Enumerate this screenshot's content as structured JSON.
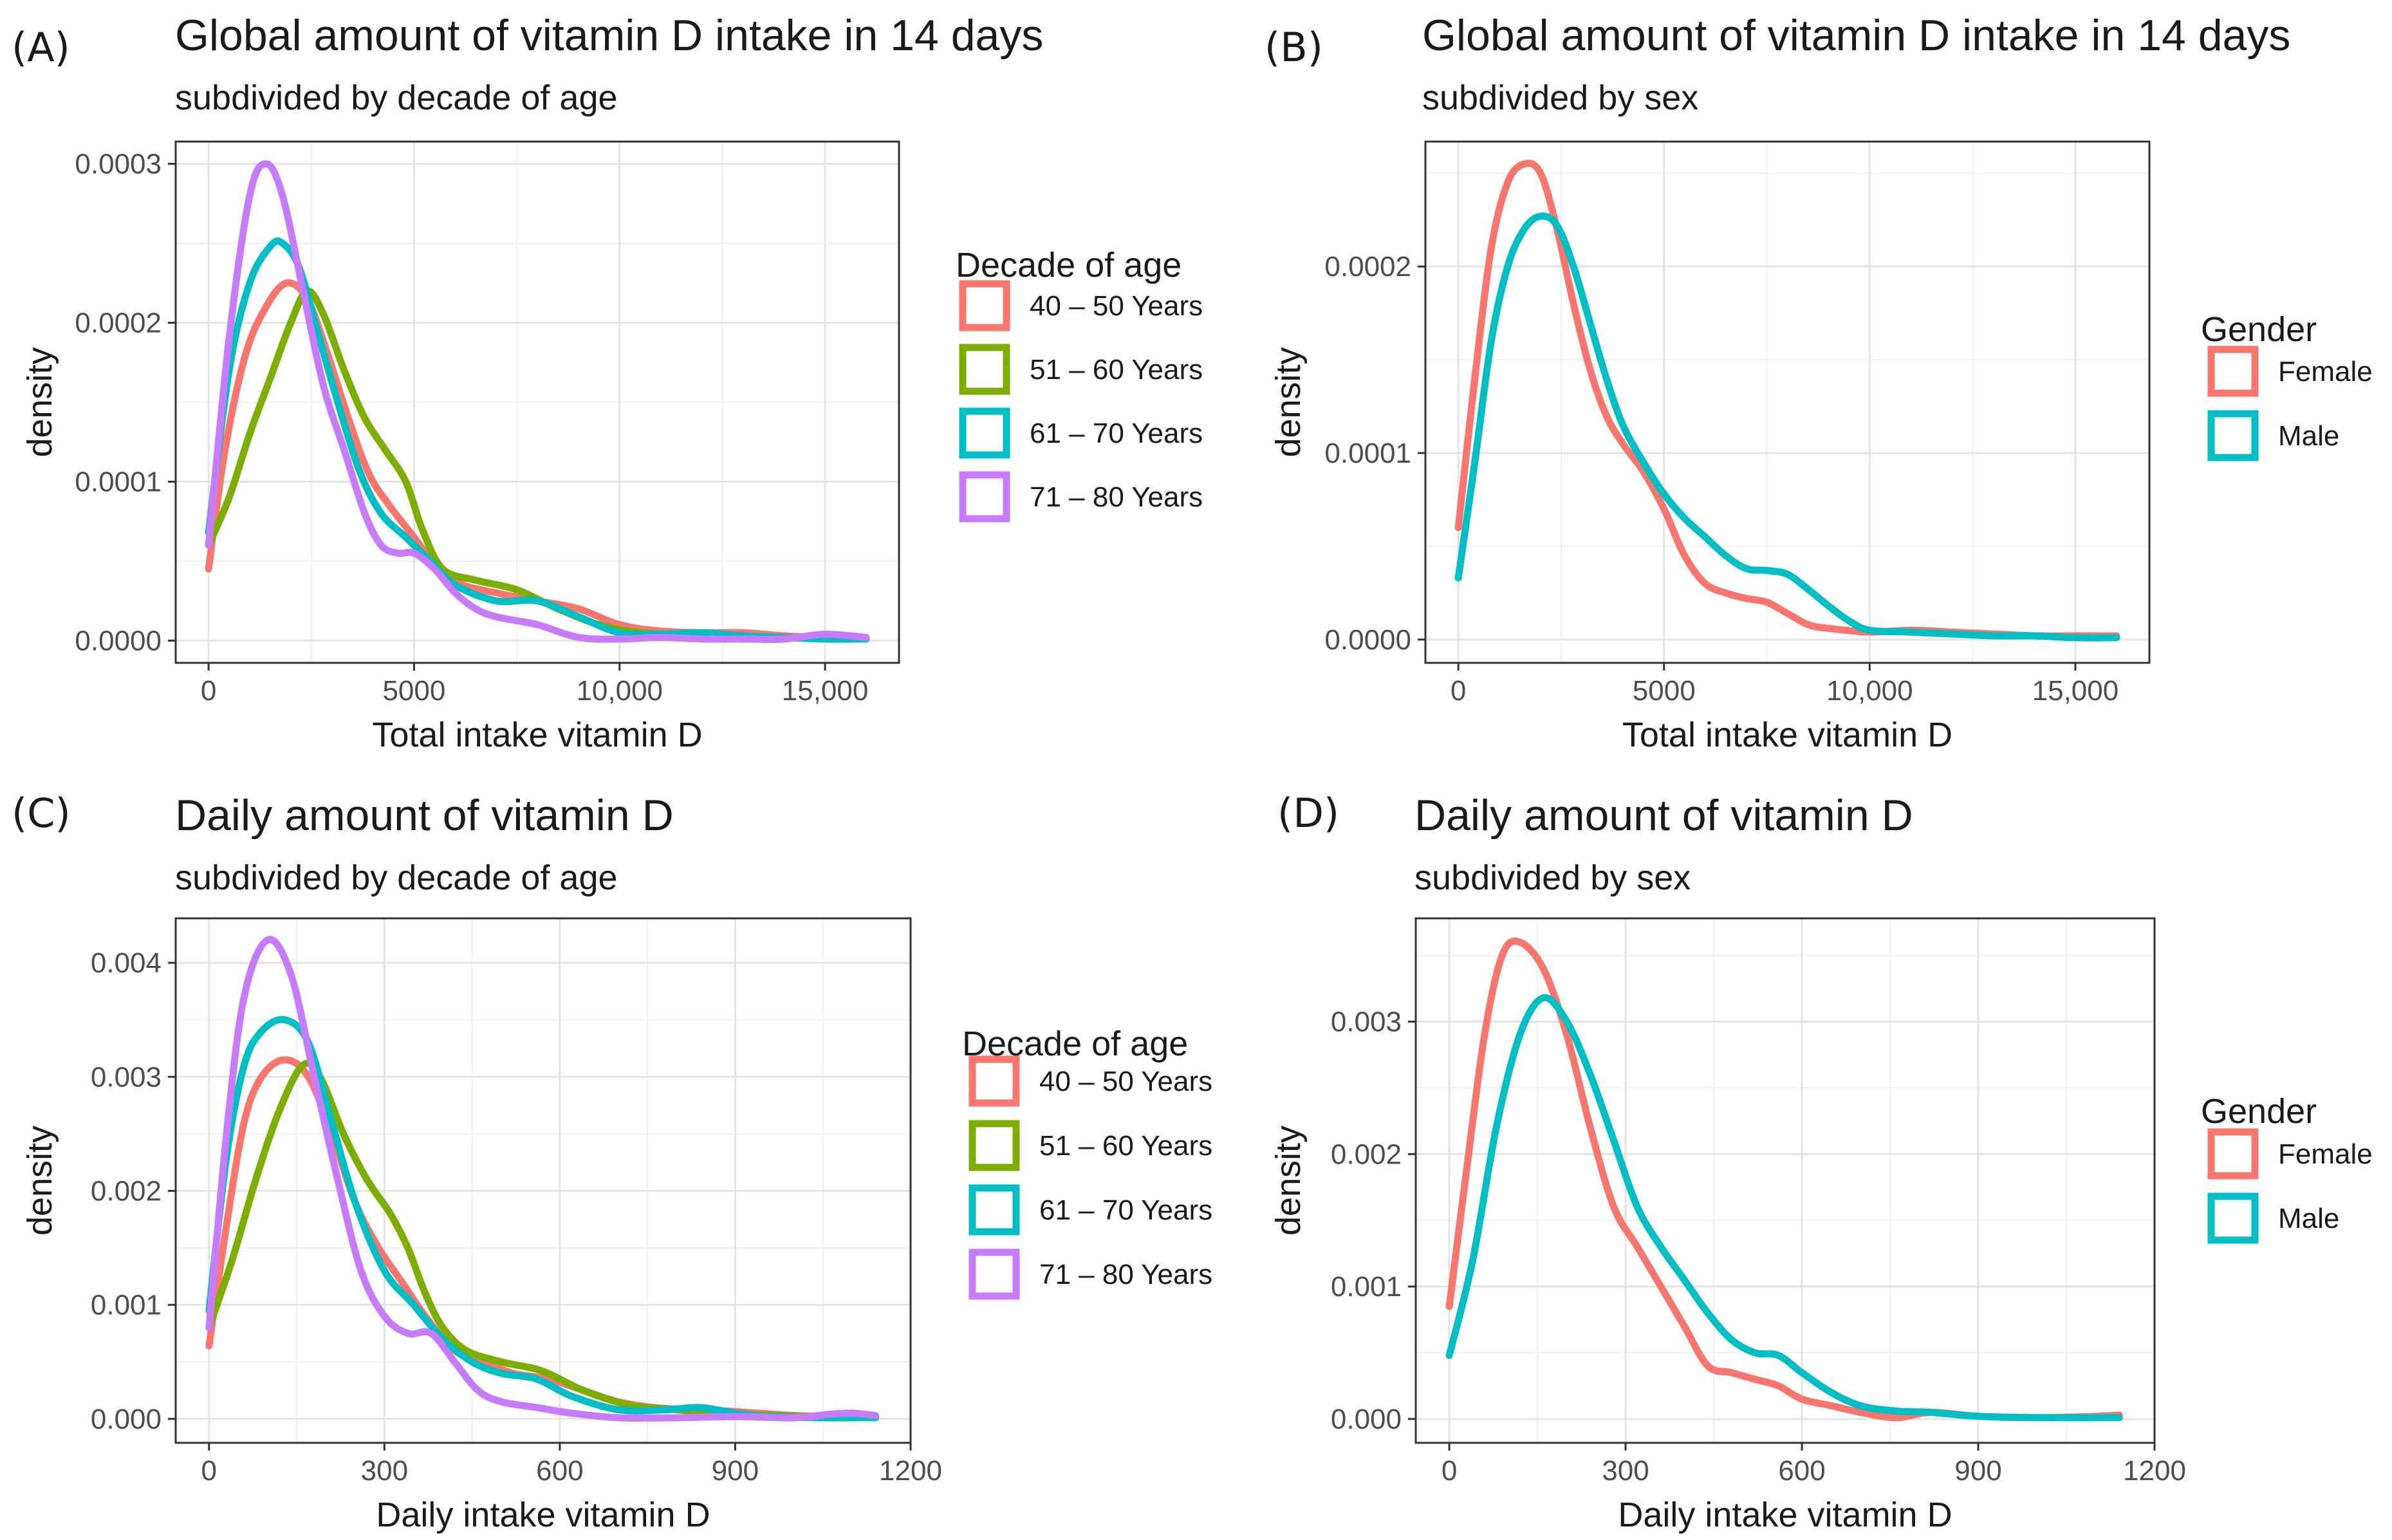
{
  "chart_data": [
    {
      "type": "line",
      "panel_label": "(A)",
      "title": "Global amount of vitamin D intake in 14 days",
      "subtitle": "subdivided by decade of age",
      "xlabel": "Total intake vitamin D",
      "ylabel": "density",
      "xlim": [
        -800,
        16800
      ],
      "ylim": [
        -1.4e-05,
        0.000314
      ],
      "xticks": [
        0,
        5000,
        10000,
        15000
      ],
      "xtick_labels": [
        "0",
        "5000",
        "10,000",
        "15,000"
      ],
      "yticks": [
        0,
        0.0001,
        0.0002,
        0.0003
      ],
      "ytick_labels": [
        "0.0000",
        "0.0001",
        "0.0002",
        "0.0003"
      ],
      "grid": true,
      "legend": {
        "title": "Decade of age",
        "position": "right"
      },
      "series": [
        {
          "name": "40 – 50 Years",
          "color": "#F8766D",
          "x": [
            0,
            400,
            900,
            1400,
            1900,
            2400,
            2900,
            3400,
            3900,
            4400,
            5000,
            5600,
            6200,
            7000,
            8000,
            9000,
            10000,
            11000,
            12000,
            13000,
            14000,
            15000,
            16000
          ],
          "y": [
            4.5e-05,
            0.00012,
            0.00018,
            0.00021,
            0.000225,
            0.000215,
            0.00018,
            0.00014,
            0.000105,
            8.5e-05,
            6.5e-05,
            4.5e-05,
            3.5e-05,
            3e-05,
            2.5e-05,
            2e-05,
            1e-05,
            6e-06,
            5e-06,
            5e-06,
            3e-06,
            2e-06,
            2e-06
          ]
        },
        {
          "name": "51 – 60 Years",
          "color": "#7CAE00",
          "x": [
            0,
            500,
            1000,
            1500,
            2000,
            2400,
            2800,
            3300,
            3800,
            4300,
            4800,
            5200,
            5700,
            6500,
            7500,
            8500,
            9500,
            10500,
            12000,
            13500,
            15000,
            16000
          ],
          "y": [
            6e-05,
            9e-05,
            0.00013,
            0.000165,
            0.0002,
            0.00022,
            0.000205,
            0.00017,
            0.00014,
            0.00012,
            0.0001,
            7e-05,
            4.5e-05,
            3.8e-05,
            3.2e-05,
            2e-05,
            1e-05,
            5e-06,
            3e-06,
            2e-06,
            2e-06,
            2e-06
          ]
        },
        {
          "name": "61 – 70 Years",
          "color": "#00BFC4",
          "x": [
            0,
            500,
            1000,
            1500,
            1800,
            2200,
            2700,
            3200,
            3700,
            4200,
            4800,
            5400,
            6000,
            7000,
            8000,
            9000,
            10000,
            11000,
            12000,
            13000,
            14000,
            15000,
            16000
          ],
          "y": [
            6.8e-05,
            0.00017,
            0.000225,
            0.000248,
            0.00025,
            0.000235,
            0.00019,
            0.000145,
            0.000105,
            8e-05,
            6.5e-05,
            5e-05,
            3.5e-05,
            2.5e-05,
            2.5e-05,
            1.5e-05,
            5e-06,
            4e-06,
            5e-06,
            3e-06,
            2e-06,
            1e-06,
            1e-06
          ]
        },
        {
          "name": "71 – 80 Years",
          "color": "#C77CFF",
          "x": [
            0,
            500,
            1000,
            1400,
            1800,
            2300,
            2800,
            3300,
            3800,
            4200,
            4600,
            5000,
            5500,
            6000,
            6500,
            7000,
            8000,
            9000,
            10000,
            11000,
            12000,
            13000,
            14000,
            15000,
            16000
          ],
          "y": [
            6e-05,
            0.00019,
            0.00028,
            0.0003,
            0.00028,
            0.00022,
            0.00016,
            0.00012,
            8e-05,
            6e-05,
            5.5e-05,
            5.5e-05,
            4.5e-05,
            3e-05,
            2e-05,
            1.5e-05,
            1e-05,
            2e-06,
            1e-06,
            2e-06,
            1e-06,
            1e-06,
            1e-06,
            4e-06,
            2e-06
          ]
        }
      ]
    },
    {
      "type": "line",
      "panel_label": "(B)",
      "title": "Global amount of vitamin D intake in 14 days",
      "subtitle": "subdivided by sex",
      "xlabel": "Total intake vitamin D",
      "ylabel": "density",
      "xlim": [
        -800,
        16800
      ],
      "ylim": [
        -1.25e-05,
        0.000267
      ],
      "xticks": [
        0,
        5000,
        10000,
        15000
      ],
      "xtick_labels": [
        "0",
        "5000",
        "10,000",
        "15,000"
      ],
      "yticks": [
        0,
        0.0001,
        0.0002
      ],
      "ytick_labels": [
        "0.0000",
        "0.0001",
        "0.0002"
      ],
      "grid": true,
      "legend": {
        "title": "Gender",
        "position": "right"
      },
      "series": [
        {
          "name": "Female",
          "color": "#F8766D",
          "x": [
            0,
            400,
            800,
            1200,
            1600,
            2000,
            2400,
            2800,
            3200,
            3600,
            4000,
            4500,
            5000,
            5500,
            6000,
            6500,
            7000,
            7500,
            8000,
            8500,
            9000,
            10000,
            11000,
            12000,
            13000,
            14000,
            15000,
            16000
          ],
          "y": [
            6e-05,
            0.00014,
            0.00021,
            0.000245,
            0.000255,
            0.00025,
            0.00022,
            0.00018,
            0.000145,
            0.00012,
            0.000105,
            9e-05,
            7e-05,
            4.5e-05,
            3e-05,
            2.5e-05,
            2.2e-05,
            2e-05,
            1.4e-05,
            8e-06,
            6e-06,
            4e-06,
            5e-06,
            4e-06,
            3e-06,
            2e-06,
            2e-06,
            2e-06
          ]
        },
        {
          "name": "Male",
          "color": "#00BFC4",
          "x": [
            0,
            400,
            800,
            1200,
            1600,
            2000,
            2400,
            2800,
            3200,
            3600,
            4000,
            4500,
            5000,
            5500,
            6000,
            6500,
            7000,
            7500,
            8000,
            8500,
            9000,
            9500,
            10000,
            11000,
            12000,
            13000,
            14000,
            15000,
            16000
          ],
          "y": [
            3.3e-05,
            9.5e-05,
            0.00016,
            0.0002,
            0.00022,
            0.000227,
            0.000222,
            0.0002,
            0.00017,
            0.00014,
            0.000115,
            9.5e-05,
            7.8e-05,
            6.5e-05,
            5.5e-05,
            4.5e-05,
            3.8e-05,
            3.7e-05,
            3.5e-05,
            2.7e-05,
            1.8e-05,
            1e-05,
            5e-06,
            4e-06,
            3e-06,
            2e-06,
            2e-06,
            1e-06,
            1e-06
          ]
        }
      ]
    },
    {
      "type": "line",
      "panel_label": "(C)",
      "title": "Daily amount of vitamin D",
      "subtitle": "subdivided by decade of age",
      "xlabel": "Daily intake vitamin D",
      "ylabel": "density",
      "xlim": [
        -57,
        1200
      ],
      "ylim": [
        -0.00021,
        0.00439
      ],
      "xticks": [
        0,
        300,
        600,
        900,
        1200
      ],
      "xtick_labels": [
        "0",
        "300",
        "600",
        "900",
        "1200"
      ],
      "yticks": [
        0,
        0.001,
        0.002,
        0.003,
        0.004
      ],
      "ytick_labels": [
        "0.000",
        "0.001",
        "0.002",
        "0.003",
        "0.004"
      ],
      "grid": true,
      "legend": {
        "title": "Decade of age",
        "position": "right"
      },
      "series": [
        {
          "name": "40 – 50 Years",
          "color": "#F8766D",
          "x": [
            0,
            30,
            60,
            90,
            130,
            170,
            210,
            250,
            290,
            330,
            370,
            420,
            470,
            520,
            580,
            640,
            700,
            760,
            820,
            880,
            940,
            1000,
            1060,
            1140
          ],
          "y": [
            0.00064,
            0.0017,
            0.0026,
            0.003,
            0.00315,
            0.003,
            0.0025,
            0.0019,
            0.0015,
            0.0012,
            0.0009,
            0.0006,
            0.0005,
            0.0004,
            0.00035,
            0.00025,
            0.00015,
            0.0001,
            8e-05,
            7e-05,
            5e-05,
            3e-05,
            2e-05,
            2e-05
          ]
        },
        {
          "name": "51 – 60 Years",
          "color": "#7CAE00",
          "x": [
            0,
            40,
            80,
            120,
            160,
            190,
            230,
            270,
            310,
            340,
            370,
            400,
            440,
            500,
            570,
            640,
            720,
            800,
            880,
            960,
            1040,
            1140
          ],
          "y": [
            0.0008,
            0.0014,
            0.0021,
            0.0027,
            0.0031,
            0.003,
            0.0025,
            0.0021,
            0.0018,
            0.0015,
            0.0011,
            0.0008,
            0.0006,
            0.0005,
            0.00042,
            0.00025,
            0.00012,
            8e-05,
            5e-05,
            3e-05,
            2e-05,
            2e-05
          ]
        },
        {
          "name": "61 – 70 Years",
          "color": "#00BFC4",
          "x": [
            0,
            30,
            60,
            90,
            130,
            170,
            210,
            250,
            300,
            350,
            400,
            450,
            500,
            560,
            620,
            700,
            780,
            840,
            900,
            960,
            1040,
            1140
          ],
          "y": [
            0.00095,
            0.0023,
            0.0031,
            0.0034,
            0.0035,
            0.0033,
            0.0026,
            0.0019,
            0.0013,
            0.001,
            0.0007,
            0.0005,
            0.0004,
            0.00035,
            0.0002,
            8e-05,
            8e-05,
            0.0001,
            5e-05,
            2e-05,
            1e-05,
            1e-05
          ]
        },
        {
          "name": "71 – 80 Years",
          "color": "#C77CFF",
          "x": [
            0,
            30,
            60,
            100,
            140,
            180,
            220,
            260,
            300,
            340,
            380,
            420,
            460,
            500,
            560,
            620,
            700,
            800,
            900,
            1000,
            1060,
            1100,
            1140
          ],
          "y": [
            0.0008,
            0.0025,
            0.0037,
            0.0042,
            0.0039,
            0.003,
            0.0021,
            0.0013,
            0.0009,
            0.00075,
            0.00075,
            0.0005,
            0.00025,
            0.00015,
            0.0001,
            5e-05,
            1e-05,
            1e-05,
            2e-05,
            1e-05,
            4e-05,
            5e-05,
            3e-05
          ]
        }
      ]
    },
    {
      "type": "line",
      "panel_label": "(D)",
      "title": "Daily amount of vitamin D",
      "subtitle": "subdivided by sex",
      "xlabel": "Daily intake vitamin D",
      "ylabel": "density",
      "xlim": [
        -57,
        1200
      ],
      "ylim": [
        -0.00018,
        0.00378
      ],
      "xticks": [
        0,
        300,
        600,
        900,
        1200
      ],
      "xtick_labels": [
        "0",
        "300",
        "600",
        "900",
        "1200"
      ],
      "yticks": [
        0,
        0.001,
        0.002,
        0.003
      ],
      "ytick_labels": [
        "0.000",
        "0.001",
        "0.002",
        "0.003"
      ],
      "grid": true,
      "legend": {
        "title": "Gender",
        "position": "right"
      },
      "series": [
        {
          "name": "Female",
          "color": "#F8766D",
          "x": [
            0,
            30,
            60,
            90,
            120,
            160,
            200,
            240,
            280,
            320,
            360,
            400,
            440,
            480,
            520,
            560,
            600,
            650,
            700,
            760,
            820,
            900,
            1000,
            1100,
            1140
          ],
          "y": [
            0.00085,
            0.0019,
            0.0029,
            0.0035,
            0.0036,
            0.0034,
            0.0029,
            0.0022,
            0.0016,
            0.0013,
            0.001,
            0.0007,
            0.0004,
            0.00035,
            0.0003,
            0.00025,
            0.00015,
            0.0001,
            5e-05,
            1e-05,
            5e-05,
            2e-05,
            1e-05,
            2e-05,
            3e-05
          ]
        },
        {
          "name": "Male",
          "color": "#00BFC4",
          "x": [
            0,
            40,
            80,
            120,
            160,
            200,
            240,
            280,
            320,
            360,
            400,
            440,
            480,
            520,
            560,
            600,
            650,
            700,
            760,
            820,
            900,
            1000,
            1140
          ],
          "y": [
            0.00048,
            0.0012,
            0.0022,
            0.0029,
            0.00318,
            0.003,
            0.0026,
            0.0021,
            0.0016,
            0.0013,
            0.00105,
            0.0008,
            0.0006,
            0.0005,
            0.00048,
            0.00035,
            0.0002,
            0.0001,
            6e-05,
            5e-05,
            2e-05,
            1e-05,
            1e-05
          ]
        }
      ]
    }
  ]
}
